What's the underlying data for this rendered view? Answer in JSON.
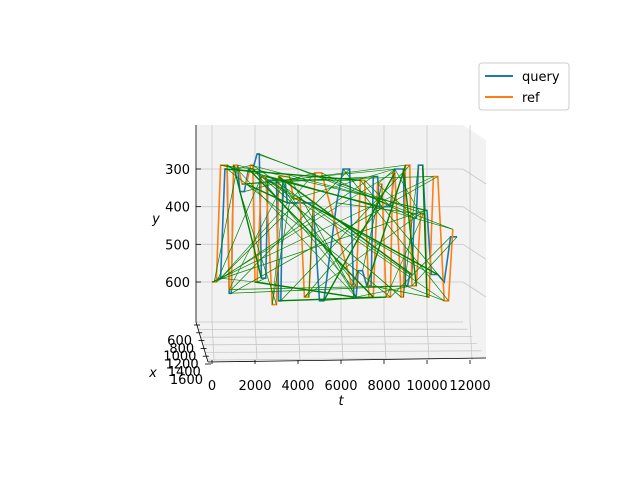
{
  "chart_data": {
    "type": "line",
    "projection": "3d",
    "xlabel": "t",
    "ylabel": "y",
    "zlabel": "x",
    "t_ticks": [
      "0",
      "2000",
      "4000",
      "6000",
      "8000",
      "10000",
      "12000"
    ],
    "y_ticks": [
      "300",
      "400",
      "500",
      "600"
    ],
    "x_ticks": [
      "600",
      "800",
      "1000",
      "1200",
      "1400",
      "1600"
    ],
    "t_range": [
      -800,
      12800
    ],
    "y_range": [
      200,
      700
    ],
    "grid": true,
    "legend": {
      "placement": "top-right",
      "entries": [
        "query",
        "ref"
      ]
    },
    "colors": {
      "query": "#1f77b4",
      "ref": "#ff7f0e",
      "alignment": "#008000",
      "pane": "#f2f2f2",
      "grid": "#c8c8c8"
    },
    "series": [
      {
        "name": "query",
        "t": [
          0,
          100,
          300,
          400,
          600,
          700,
          800,
          900,
          1000,
          1200,
          1300,
          1500,
          1700,
          1900,
          2100,
          2200,
          2300,
          2500,
          2600,
          3000,
          3100,
          3200,
          3300,
          3400,
          3500,
          3600,
          4700,
          5000,
          5200,
          5800,
          6100,
          6400,
          6600,
          6700,
          6800,
          7000,
          7200,
          7400,
          7500,
          7700,
          7800,
          7900,
          8300,
          8500,
          8900,
          9000,
          9100,
          9200,
          9300,
          9400,
          9500,
          9600,
          9800,
          9900,
          10000,
          10200,
          10500,
          10800,
          11100,
          11400
        ],
        "y": [
          600,
          600,
          590,
          590,
          300,
          300,
          630,
          630,
          300,
          300,
          360,
          360,
          300,
          300,
          260,
          260,
          590,
          590,
          330,
          330,
          650,
          650,
          330,
          330,
          390,
          390,
          390,
          650,
          650,
          390,
          300,
          300,
          640,
          640,
          570,
          570,
          610,
          610,
          320,
          320,
          400,
          400,
          400,
          300,
          300,
          610,
          610,
          580,
          580,
          430,
          430,
          290,
          290,
          410,
          410,
          580,
          580,
          600,
          480,
          480
        ]
      },
      {
        "name": "ref",
        "t": [
          0,
          200,
          400,
          700,
          800,
          900,
          1000,
          1200,
          1400,
          1600,
          1800,
          1900,
          2000,
          2100,
          2300,
          2500,
          2800,
          3000,
          3100,
          3600,
          3800,
          4100,
          4300,
          4500,
          4800,
          5100,
          6500,
          6700,
          6900,
          7100,
          7300,
          7500,
          7700,
          7900,
          8100,
          8300,
          8400,
          8500,
          8800,
          8900,
          9000,
          9200,
          9300,
          9500,
          9700,
          9900,
          10000,
          10100,
          10300,
          10500,
          10800,
          11000,
          11200
        ],
        "y": [
          600,
          600,
          290,
          290,
          620,
          620,
          290,
          290,
          340,
          340,
          290,
          290,
          600,
          600,
          320,
          320,
          660,
          660,
          320,
          320,
          380,
          380,
          640,
          640,
          310,
          310,
          610,
          610,
          330,
          330,
          640,
          640,
          340,
          340,
          640,
          640,
          310,
          310,
          640,
          640,
          290,
          290,
          610,
          610,
          420,
          420,
          640,
          640,
          320,
          320,
          650,
          650,
          460
        ]
      }
    ]
  },
  "legend": {
    "query": "query",
    "ref": "ref"
  }
}
